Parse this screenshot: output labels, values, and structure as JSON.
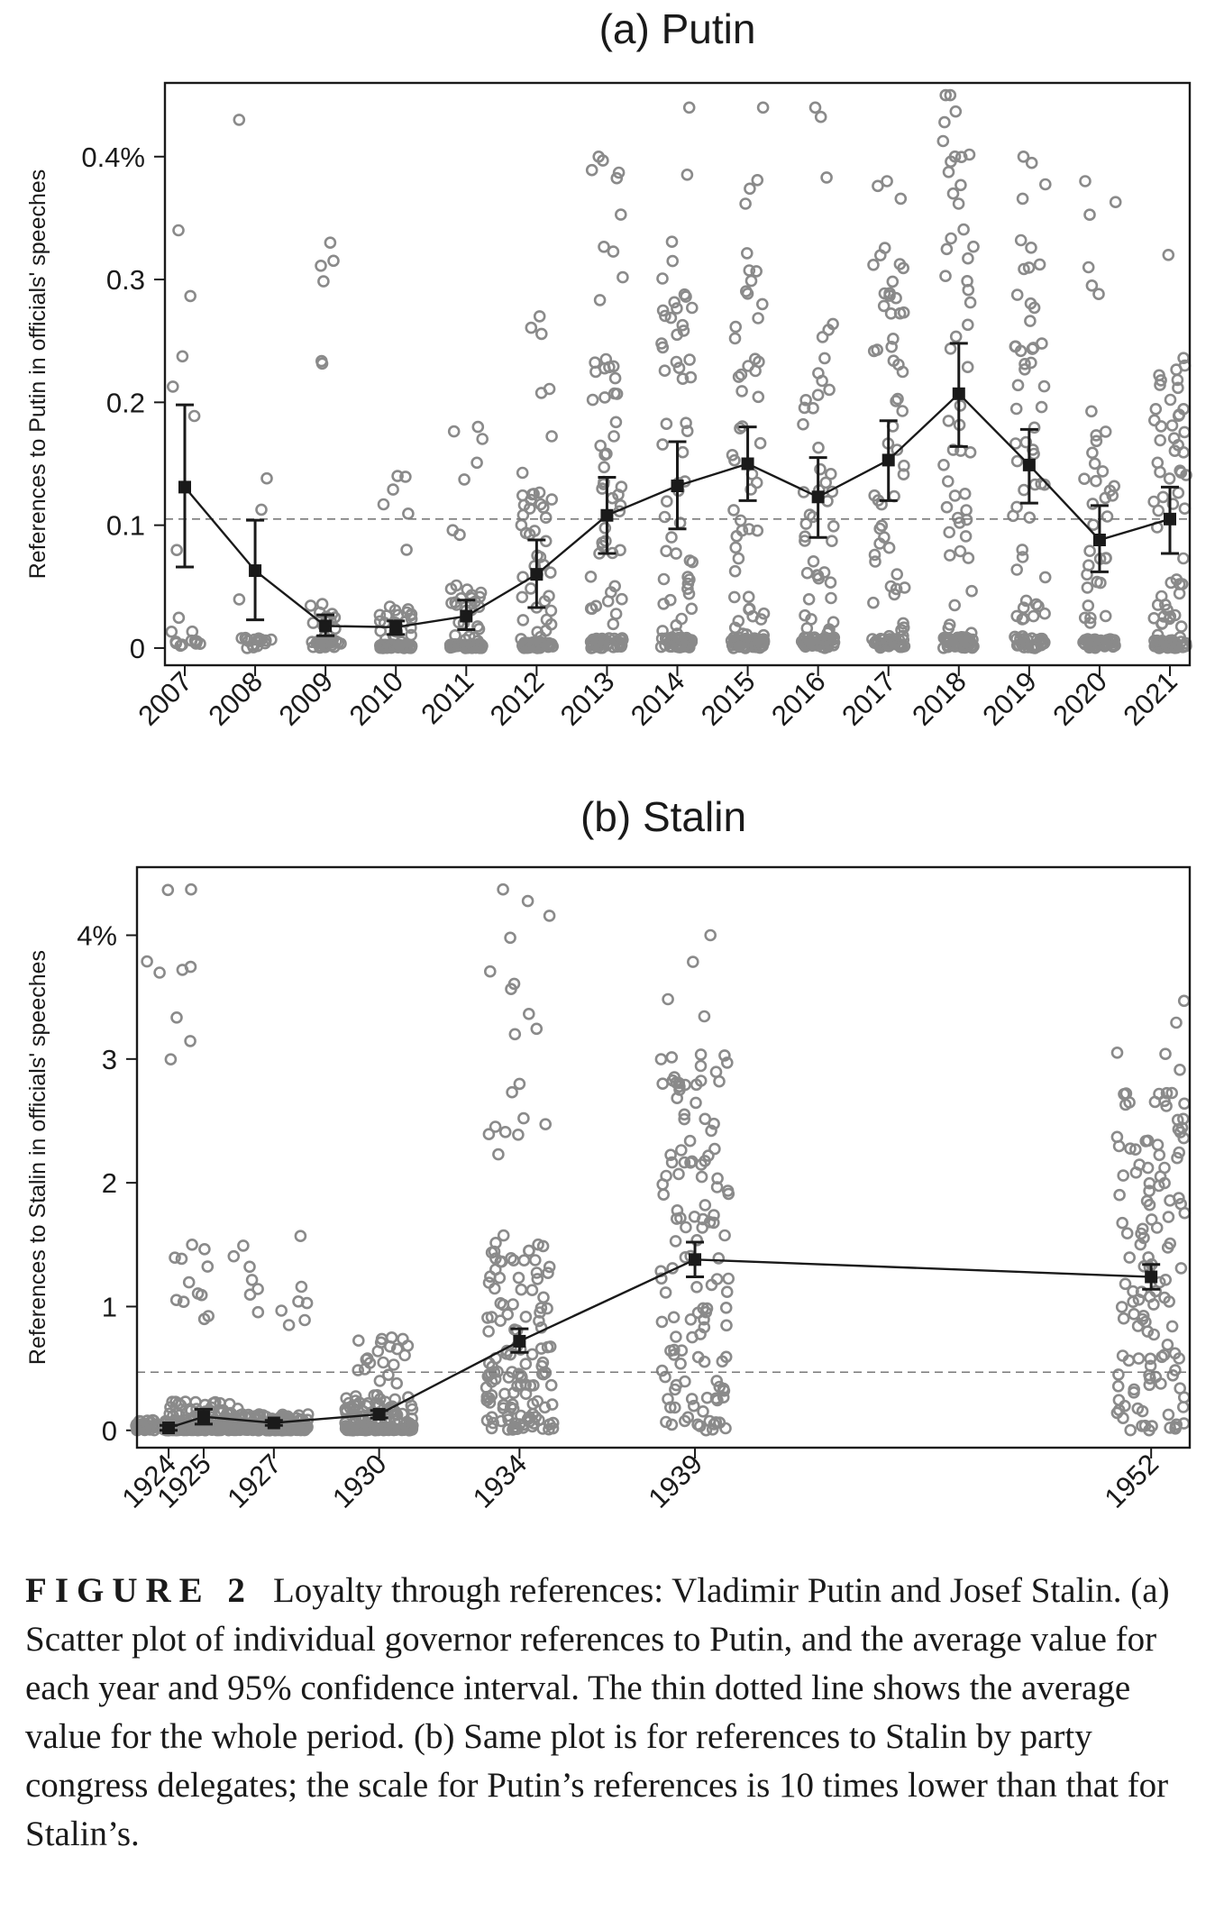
{
  "chart_data": [
    {
      "type": "scatter",
      "title": "(a) Putin",
      "ylabel": "References to Putin in officials' speeches",
      "categories": [
        "2007",
        "2008",
        "2009",
        "2010",
        "2011",
        "2012",
        "2013",
        "2014",
        "2015",
        "2016",
        "2017",
        "2018",
        "2019",
        "2020",
        "2021"
      ],
      "yticks": [
        0,
        0.1,
        0.2,
        0.3,
        0.4
      ],
      "ytick_labels": [
        "0",
        "0.1",
        "0.2",
        "0.3",
        "0.4%"
      ],
      "ylim": [
        -0.014,
        0.46
      ],
      "overall_mean": 0.105,
      "series": [
        {
          "kind": "mean_with_95ci",
          "values": [
            0.131,
            0.063,
            0.018,
            0.017,
            0.026,
            0.06,
            0.108,
            0.132,
            0.15,
            0.123,
            0.153,
            0.207,
            0.149,
            0.088,
            0.105
          ],
          "ci_low": [
            0.066,
            0.023,
            0.01,
            0.011,
            0.015,
            0.033,
            0.077,
            0.097,
            0.12,
            0.09,
            0.12,
            0.164,
            0.118,
            0.062,
            0.077
          ],
          "ci_high": [
            0.198,
            0.104,
            0.027,
            0.022,
            0.039,
            0.088,
            0.139,
            0.168,
            0.18,
            0.155,
            0.185,
            0.248,
            0.178,
            0.116,
            0.131
          ]
        }
      ],
      "individual_points": {
        "counts": [
          18,
          20,
          45,
          75,
          90,
          85,
          95,
          95,
          100,
          90,
          90,
          95,
          85,
          80,
          100
        ],
        "zero_share": [
          0.55,
          0.55,
          0.55,
          0.55,
          0.55,
          0.5,
          0.4,
          0.4,
          0.4,
          0.4,
          0.4,
          0.4,
          0.4,
          0.45,
          0.4
        ],
        "max": [
          0.34,
          0.43,
          0.33,
          0.14,
          0.18,
          0.27,
          0.4,
          0.44,
          0.44,
          0.44,
          0.38,
          0.45,
          0.4,
          0.38,
          0.32
        ]
      },
      "grid": false
    },
    {
      "type": "scatter",
      "title": "(b) Stalin",
      "ylabel": "References to Stalin in officials' speeches",
      "x_scale": "linear-years",
      "categories": [
        "1924",
        "1925",
        "1927",
        "1930",
        "1934",
        "1939",
        "1952"
      ],
      "x": [
        1924,
        1925,
        1927,
        1930,
        1934,
        1939,
        1952
      ],
      "xlim": [
        1923.1,
        1953.1
      ],
      "yticks": [
        0,
        1,
        2,
        3,
        4
      ],
      "ytick_labels": [
        "0",
        "1",
        "2",
        "3",
        "4%"
      ],
      "ylim": [
        -0.14,
        4.55
      ],
      "overall_mean": 0.47,
      "series": [
        {
          "kind": "mean_with_95ci",
          "values": [
            0.02,
            0.11,
            0.06,
            0.13,
            0.72,
            1.38,
            1.24
          ],
          "ci_low": [
            0.0,
            0.05,
            0.04,
            0.1,
            0.63,
            1.24,
            1.14
          ],
          "ci_high": [
            0.04,
            0.17,
            0.08,
            0.16,
            0.82,
            1.52,
            1.34
          ]
        }
      ],
      "individual_points": {
        "counts": [
          120,
          150,
          200,
          180,
          150,
          130,
          130
        ],
        "zero_share": [
          0.5,
          0.4,
          0.4,
          0.4,
          0.05,
          0.02,
          0.02
        ],
        "max": [
          4.37,
          1.5,
          1.57,
          0.75,
          4.37,
          4.0,
          3.47
        ]
      },
      "grid": false
    }
  ],
  "caption": {
    "label": "FIGURE 2",
    "text": "Loyalty through references: Vladimir Putin and Josef Stalin. (a) Scatter plot of individual governor references to Putin, and the average value for each year and 95% confidence interval. The thin dotted line shows the average value for the whole period. (b) Same plot is for references to Stalin by party congress delegates; the scale for Putin’s references is 10 times lower than that for Stalin’s."
  },
  "colors": {
    "points": "#8a8a8a",
    "mean_line": "#1a1a1a",
    "frame": "#1a1a1a"
  }
}
